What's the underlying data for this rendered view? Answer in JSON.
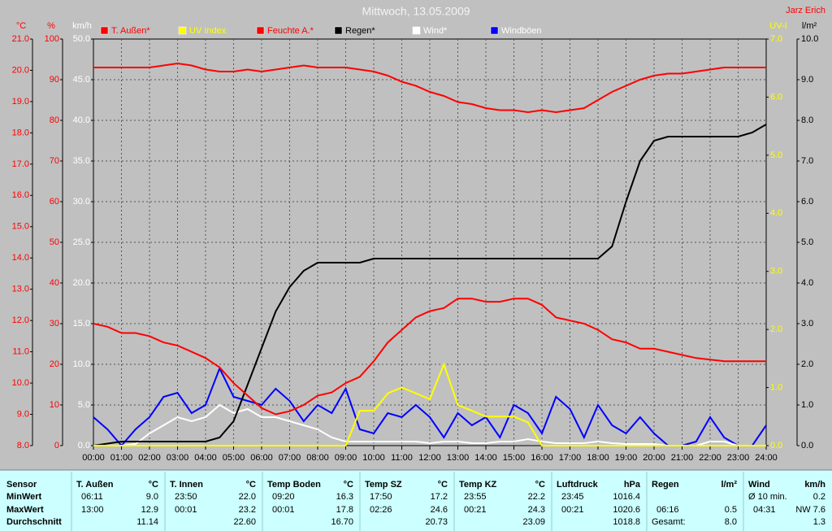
{
  "chart_data": {
    "type": "line",
    "title": "Mittwoch, 13.05.2009",
    "author": "Jarz Erich",
    "grid": true,
    "xlim": [
      0,
      24
    ],
    "xticks": [
      {
        "value": 0,
        "label": "00:00"
      },
      {
        "value": 1,
        "label": "01:00"
      },
      {
        "value": 2,
        "label": "02:00"
      },
      {
        "value": 3,
        "label": "03:00"
      },
      {
        "value": 4,
        "label": "04:00"
      },
      {
        "value": 5,
        "label": "05:00"
      },
      {
        "value": 6,
        "label": "06:00"
      },
      {
        "value": 7,
        "label": "07:00"
      },
      {
        "value": 8,
        "label": "08:00"
      },
      {
        "value": 9,
        "label": "09:00"
      },
      {
        "value": 10,
        "label": "10:00"
      },
      {
        "value": 11,
        "label": "11:00"
      },
      {
        "value": 12,
        "label": "12:00"
      },
      {
        "value": 13,
        "label": "13:00"
      },
      {
        "value": 14,
        "label": "14:00"
      },
      {
        "value": 15,
        "label": "15:00"
      },
      {
        "value": 16,
        "label": "16:00"
      },
      {
        "value": 17,
        "label": "17:00"
      },
      {
        "value": 18,
        "label": "18:00"
      },
      {
        "value": 19,
        "label": "19:00"
      },
      {
        "value": 20,
        "label": "20:00"
      },
      {
        "value": 21,
        "label": "21:00"
      },
      {
        "value": 22,
        "label": "22:00"
      },
      {
        "value": 23,
        "label": "23:00"
      },
      {
        "value": 24,
        "label": "24:00"
      }
    ],
    "axes": [
      {
        "id": "y2",
        "side": "left",
        "label": "°C",
        "color": "#ff0000",
        "lim": [
          8,
          21
        ],
        "ticks": [
          {
            "value": 8,
            "label": "8.0"
          },
          {
            "value": 9,
            "label": "9.0"
          },
          {
            "value": 10,
            "label": "10.0"
          },
          {
            "value": 11,
            "label": "11.0"
          },
          {
            "value": 12,
            "label": "12.0"
          },
          {
            "value": 13,
            "label": "13.0"
          },
          {
            "value": 14,
            "label": "14.0"
          },
          {
            "value": 15,
            "label": "15.0"
          },
          {
            "value": 16,
            "label": "16.0"
          },
          {
            "value": 17,
            "label": "17.0"
          },
          {
            "value": 18,
            "label": "18.0"
          },
          {
            "value": 19,
            "label": "19.0"
          },
          {
            "value": 20,
            "label": "20.0"
          },
          {
            "value": 21,
            "label": "21.0"
          }
        ]
      },
      {
        "id": "y3",
        "side": "left",
        "label": "%",
        "color": "#ff0000",
        "lim": [
          0,
          100
        ],
        "ticks": [
          0,
          10,
          20,
          30,
          40,
          50,
          60,
          70,
          80,
          90,
          100
        ]
      },
      {
        "id": "y",
        "side": "left",
        "label": "km/h",
        "color": "#ffffff",
        "lim": [
          0,
          50
        ],
        "ticks": [
          {
            "value": 0,
            "label": "0.0"
          },
          {
            "value": 5,
            "label": "5.0"
          },
          {
            "value": 10,
            "label": "10.0"
          },
          {
            "value": 15,
            "label": "15.0"
          },
          {
            "value": 20,
            "label": "20.0"
          },
          {
            "value": 25,
            "label": "25.0"
          },
          {
            "value": 30,
            "label": "30.0"
          },
          {
            "value": 35,
            "label": "35.0"
          },
          {
            "value": 40,
            "label": "40.0"
          },
          {
            "value": 45,
            "label": "45.0"
          },
          {
            "value": 50,
            "label": "50.0"
          }
        ]
      },
      {
        "id": "y4",
        "side": "right",
        "label": "UV-I",
        "color": "#ffff00",
        "lim": [
          0,
          7
        ],
        "ticks": [
          {
            "value": 0,
            "label": "0.0"
          },
          {
            "value": 1,
            "label": "1.0"
          },
          {
            "value": 2,
            "label": "2.0"
          },
          {
            "value": 3,
            "label": "3.0"
          },
          {
            "value": 4,
            "label": "4.0"
          },
          {
            "value": 5,
            "label": "5.0"
          },
          {
            "value": 6,
            "label": "6.0"
          },
          {
            "value": 7,
            "label": "7.0"
          }
        ]
      },
      {
        "id": "y5",
        "side": "right",
        "label": "l/m²",
        "color": "#000000",
        "lim": [
          0,
          10
        ],
        "ticks": [
          {
            "value": 0,
            "label": "0.0"
          },
          {
            "value": 1,
            "label": "1.0"
          },
          {
            "value": 2,
            "label": "2.0"
          },
          {
            "value": 3,
            "label": "3.0"
          },
          {
            "value": 4,
            "label": "4.0"
          },
          {
            "value": 5,
            "label": "5.0"
          },
          {
            "value": 6,
            "label": "6.0"
          },
          {
            "value": 7,
            "label": "7.0"
          },
          {
            "value": 8,
            "label": "8.0"
          },
          {
            "value": 9,
            "label": "9.0"
          },
          {
            "value": 10,
            "label": "10.0"
          }
        ]
      }
    ],
    "x": [
      0,
      0.5,
      1,
      1.5,
      2,
      2.5,
      3,
      3.5,
      4,
      4.5,
      5,
      5.5,
      6,
      6.5,
      7,
      7.5,
      8,
      8.5,
      9,
      9.5,
      10,
      10.5,
      11,
      11.5,
      12,
      12.5,
      13,
      13.5,
      14,
      14.5,
      15,
      15.5,
      16,
      16.5,
      17,
      17.5,
      18,
      18.5,
      19,
      19.5,
      20,
      20.5,
      21,
      21.5,
      22,
      22.5,
      23,
      23.5,
      24
    ],
    "series": [
      {
        "name": "T. Außen*",
        "color": "#ff0000",
        "axis": "y2",
        "values": [
          11.9,
          11.8,
          11.6,
          11.6,
          11.5,
          11.3,
          11.2,
          11.0,
          10.8,
          10.5,
          10.0,
          9.6,
          9.2,
          9.0,
          9.1,
          9.3,
          9.6,
          9.7,
          10.0,
          10.2,
          10.7,
          11.3,
          11.7,
          12.1,
          12.3,
          12.4,
          12.7,
          12.7,
          12.6,
          12.6,
          12.7,
          12.7,
          12.5,
          12.1,
          12.0,
          11.9,
          11.7,
          11.4,
          11.3,
          11.1,
          11.1,
          11.0,
          10.9,
          10.8,
          10.75,
          10.7,
          10.7,
          10.7,
          10.7
        ]
      },
      {
        "name": "UV Index",
        "color": "#ffff00",
        "axis": "y4",
        "values": [
          0,
          0,
          0,
          0,
          0,
          0,
          0,
          0,
          0,
          0,
          0,
          0,
          0,
          0,
          0,
          0,
          0,
          0,
          0,
          0.6,
          0.6,
          0.9,
          1.0,
          0.9,
          0.8,
          1.4,
          0.7,
          0.6,
          0.5,
          0.5,
          0.5,
          0.4,
          0,
          0,
          0,
          0,
          0,
          0,
          0,
          0,
          0,
          0,
          0,
          0,
          0,
          0,
          0,
          0,
          0
        ]
      },
      {
        "name": "Feuchte A.*",
        "color": "#ff0000",
        "axis": "y3",
        "values": [
          93,
          93,
          93,
          93,
          93,
          93.5,
          94,
          93.5,
          92.5,
          92,
          92,
          92.5,
          92,
          92.5,
          93,
          93.5,
          93,
          93,
          93,
          92.5,
          92,
          91,
          89.5,
          88.5,
          87,
          86,
          84.5,
          84,
          83,
          82.5,
          82.5,
          82,
          82.5,
          82,
          82.5,
          83,
          85,
          87,
          88.5,
          90,
          91,
          91.5,
          91.5,
          92,
          92.5,
          93,
          93,
          93,
          93
        ]
      },
      {
        "name": "Regen*",
        "color": "#000000",
        "axis": "y5",
        "values": [
          0,
          0.05,
          0.1,
          0.1,
          0.1,
          0.1,
          0.1,
          0.1,
          0.1,
          0.2,
          0.6,
          1.5,
          2.4,
          3.3,
          3.9,
          4.3,
          4.5,
          4.5,
          4.5,
          4.5,
          4.6,
          4.6,
          4.6,
          4.6,
          4.6,
          4.6,
          4.6,
          4.6,
          4.6,
          4.6,
          4.6,
          4.6,
          4.6,
          4.6,
          4.6,
          4.6,
          4.6,
          4.9,
          6.0,
          7.0,
          7.5,
          7.6,
          7.6,
          7.6,
          7.6,
          7.6,
          7.6,
          7.7,
          7.9
        ]
      },
      {
        "name": "Wind*",
        "color": "#ffffff",
        "axis": "y",
        "values": [
          0,
          0,
          0,
          0.2,
          1.5,
          2.5,
          3.5,
          3.0,
          3.5,
          5.0,
          4.0,
          4.5,
          3.5,
          3.5,
          3.0,
          2.5,
          2.0,
          1.0,
          0.5,
          0.5,
          0.5,
          0.5,
          0.5,
          0.5,
          0.3,
          0.5,
          0.5,
          0.3,
          0.3,
          0.5,
          0.5,
          0.8,
          0.5,
          0.3,
          0.3,
          0.3,
          0.5,
          0.3,
          0.2,
          0.2,
          0.2,
          0,
          0,
          0,
          0.5,
          0.5,
          0,
          0,
          0
        ]
      },
      {
        "name": "Windböen",
        "color": "#0000ff",
        "axis": "y",
        "values": [
          3.5,
          2,
          0,
          2,
          3.5,
          6,
          6.5,
          4,
          5,
          9.5,
          6,
          5.5,
          5,
          7,
          5.5,
          3,
          5,
          4,
          7,
          2,
          1.5,
          4,
          3.5,
          5,
          3.5,
          1,
          4,
          2.5,
          3.5,
          1,
          5,
          4,
          1.5,
          6,
          4.5,
          1,
          5,
          2.5,
          1.5,
          3.5,
          1.5,
          0,
          0,
          0.5,
          3.5,
          1,
          0,
          0,
          2.5
        ]
      }
    ]
  },
  "table": {
    "row_labels": [
      "Sensor",
      "MinWert",
      "MaxWert",
      "Durchschnitt"
    ],
    "columns": [
      {
        "name": "T. Außen",
        "unit": "°C",
        "min": {
          "time": "06:11",
          "value": "9.0"
        },
        "max": {
          "time": "13:00",
          "value": "12.9"
        },
        "avg": {
          "value": "11.14"
        }
      },
      {
        "name": "T. Innen",
        "unit": "°C",
        "min": {
          "time": "23:50",
          "value": "22.0"
        },
        "max": {
          "time": "00:01",
          "value": "23.2"
        },
        "avg": {
          "value": "22.60"
        }
      },
      {
        "name": "Temp Boden",
        "unit": "°C",
        "min": {
          "time": "09:20",
          "value": "16.3"
        },
        "max": {
          "time": "00:01",
          "value": "17.8"
        },
        "avg": {
          "value": "16.70"
        }
      },
      {
        "name": "Temp SZ",
        "unit": "°C",
        "min": {
          "time": "17:50",
          "value": "17.2"
        },
        "max": {
          "time": "02:26",
          "value": "24.6"
        },
        "avg": {
          "value": "20.73"
        }
      },
      {
        "name": "Temp KZ",
        "unit": "°C",
        "min": {
          "time": "23:55",
          "value": "22.2"
        },
        "max": {
          "time": "00:21",
          "value": "24.3"
        },
        "avg": {
          "value": "23.09"
        }
      },
      {
        "name": "Luftdruck",
        "unit": "hPa",
        "min": {
          "time": "23:45",
          "value": "1016.4"
        },
        "max": {
          "time": "00:21",
          "value": "1020.6"
        },
        "avg": {
          "value": "1018.8"
        }
      },
      {
        "name": "Regen",
        "unit": "l/m²",
        "max": {
          "time": "06:16",
          "value": "0.5"
        },
        "avg": {
          "label": "Gesamt:",
          "value": "8.0"
        }
      },
      {
        "name": "Wind",
        "unit": "km/h",
        "min": {
          "label": "Ø 10 min.",
          "value": "0.2"
        },
        "max": {
          "time": "04:31",
          "value": "NW 7.6"
        },
        "avg": {
          "value": "1.3"
        }
      }
    ]
  }
}
